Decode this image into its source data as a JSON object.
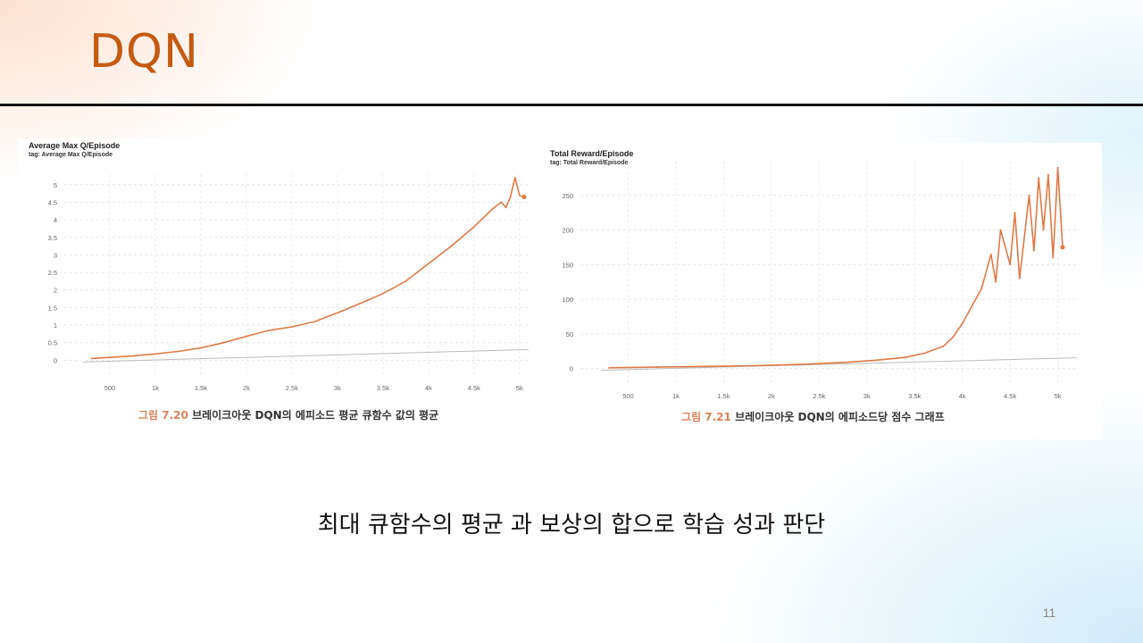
{
  "slide": {
    "title": "DQN",
    "subtitle": "최대 큐함수의 평균 과 보상의 합으로 학습 성과 판단",
    "page_number": "11",
    "accent_color": "#c55a11"
  },
  "figures": {
    "left": {
      "caption_number": "그림 7.20",
      "caption_text": "브레이크아웃 DQN의 에피소드 평균 큐함수 값의 평균"
    },
    "right": {
      "caption_number": "그림 7.21",
      "caption_text": "브레이크아웃 DQN의 에피소드당 점수 그래프"
    }
  },
  "chart_data": [
    {
      "type": "line",
      "title": "Average Max Q/Episode",
      "subtitle": "tag: Average Max Q/Episode",
      "line_color": "#e07a45",
      "grid": true,
      "xlim": [
        0,
        5100
      ],
      "ylim": [
        -0.5,
        5.3
      ],
      "x_ticks": [
        500,
        1000,
        1500,
        2000,
        2500,
        3000,
        3500,
        4000,
        4500,
        5000
      ],
      "x_tick_labels": [
        "500",
        "1k",
        "1.5k",
        "2k",
        "2.5k",
        "3k",
        "3.5k",
        "4k",
        "4.5k",
        "5k"
      ],
      "y_ticks": [
        0,
        0.5,
        1,
        1.5,
        2,
        2.5,
        3,
        3.5,
        4,
        4.5,
        5
      ],
      "y_tick_labels": [
        "0",
        "0.5",
        "1",
        "1.5",
        "2",
        "2.5",
        "3",
        "3.5",
        "4",
        "4.5",
        "5"
      ],
      "series": [
        {
          "x": [
            300,
            500,
            750,
            1000,
            1250,
            1500,
            1750,
            2000,
            2250,
            2500,
            2750,
            3000,
            3250,
            3500,
            3750,
            4000,
            4250,
            4500,
            4700,
            4800,
            4850,
            4900,
            4950,
            5000,
            5050
          ],
          "values": [
            0.05,
            0.08,
            0.12,
            0.18,
            0.25,
            0.35,
            0.5,
            0.68,
            0.85,
            0.95,
            1.1,
            1.35,
            1.62,
            1.9,
            2.25,
            2.75,
            3.25,
            3.8,
            4.3,
            4.5,
            4.35,
            4.65,
            5.2,
            4.7,
            4.65
          ]
        }
      ]
    },
    {
      "type": "line",
      "title": "Total Reward/Episode",
      "subtitle": "tag: Total Reward/Episode",
      "line_color": "#e07a45",
      "grid": true,
      "xlim": [
        0,
        5200
      ],
      "ylim": [
        -25,
        300
      ],
      "x_ticks": [
        500,
        1000,
        1500,
        2000,
        2500,
        3000,
        3500,
        4000,
        4500,
        5000
      ],
      "x_tick_labels": [
        "500",
        "1k",
        "1.5k",
        "2k",
        "2.5k",
        "3k",
        "3.5k",
        "4k",
        "4.5k",
        "5k"
      ],
      "y_ticks": [
        0,
        50,
        100,
        150,
        200,
        250
      ],
      "y_tick_labels": [
        "0",
        "50",
        "100",
        "150",
        "200",
        "250"
      ],
      "series": [
        {
          "x": [
            300,
            800,
            1300,
            1800,
            2300,
            2800,
            3100,
            3400,
            3600,
            3800,
            3900,
            4000,
            4100,
            4200,
            4300,
            4350,
            4400,
            4500,
            4550,
            4600,
            4700,
            4750,
            4800,
            4850,
            4900,
            4950,
            5000,
            5050
          ],
          "values": [
            1,
            2,
            3,
            4,
            6,
            9,
            12,
            16,
            22,
            32,
            45,
            65,
            90,
            115,
            165,
            125,
            200,
            150,
            225,
            130,
            250,
            170,
            275,
            200,
            280,
            160,
            290,
            175
          ]
        }
      ]
    }
  ]
}
